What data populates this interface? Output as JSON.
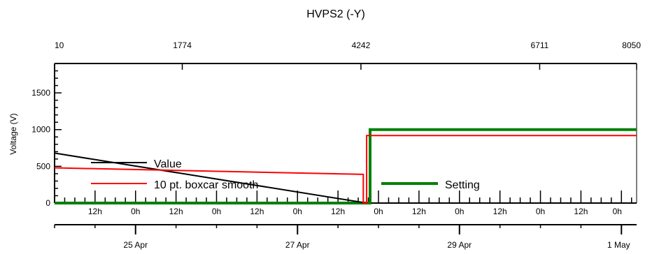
{
  "chart_data": {
    "type": "line",
    "title": "HVPS2 (-Y)",
    "ylabel": "Voltage (V)",
    "ylim": [
      0,
      1900
    ],
    "yticks": [
      0,
      500,
      1000,
      1500
    ],
    "top_axis": {
      "range": [
        10,
        8050
      ],
      "tick_values": [
        10,
        1774,
        4242,
        6711,
        8050
      ],
      "tick_labels": [
        "10",
        "1774",
        "4242",
        "6711",
        "8050"
      ]
    },
    "x_axis_hours": {
      "range": [
        0,
        172.5
      ],
      "hour_labels": [
        {
          "hour": 12,
          "label": "12h"
        },
        {
          "hour": 24,
          "label": "0h"
        },
        {
          "hour": 36,
          "label": "12h"
        },
        {
          "hour": 48,
          "label": "0h"
        },
        {
          "hour": 60,
          "label": "12h"
        },
        {
          "hour": 72,
          "label": "0h"
        },
        {
          "hour": 84,
          "label": "12h"
        },
        {
          "hour": 96,
          "label": "0h"
        },
        {
          "hour": 108,
          "label": "12h"
        },
        {
          "hour": 120,
          "label": "0h"
        },
        {
          "hour": 132,
          "label": "12h"
        },
        {
          "hour": 144,
          "label": "0h"
        },
        {
          "hour": 156,
          "label": "12h"
        },
        {
          "hour": 168,
          "label": "0h"
        }
      ],
      "date_labels": [
        {
          "hour": 24,
          "label": "25 Apr"
        },
        {
          "hour": 72,
          "label": "27 Apr"
        },
        {
          "hour": 120,
          "label": "29 Apr"
        },
        {
          "hour": 168,
          "label": "1 May"
        }
      ]
    },
    "series": [
      {
        "name": "Value",
        "color": "#000000",
        "x": [
          0,
          92.5
        ],
        "y": [
          680,
          0
        ]
      },
      {
        "name": "10 pt. boxcar smooth",
        "color": "#ff0000",
        "x": [
          0,
          91.5,
          91.5,
          92.5,
          92.5,
          172.5
        ],
        "y": [
          480,
          390,
          0,
          0,
          920,
          920
        ]
      },
      {
        "name": "Setting",
        "color": "#008000",
        "x": [
          0,
          93.5,
          93.5,
          172.5
        ],
        "y": [
          0,
          0,
          1000,
          1000
        ]
      }
    ],
    "grid": false
  },
  "legend": {
    "value_label": "Value",
    "smooth_label": "10 pt. boxcar smooth",
    "setting_label": "Setting"
  }
}
